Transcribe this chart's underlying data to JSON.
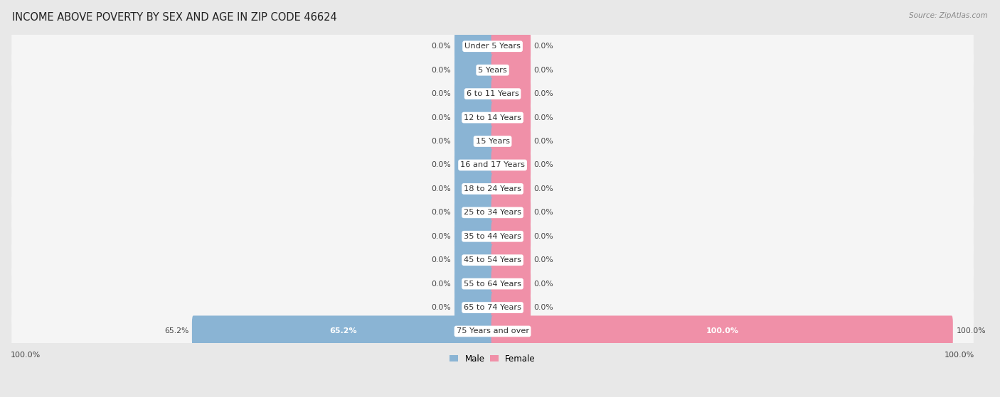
{
  "title": "INCOME ABOVE POVERTY BY SEX AND AGE IN ZIP CODE 46624",
  "source": "Source: ZipAtlas.com",
  "categories": [
    "Under 5 Years",
    "5 Years",
    "6 to 11 Years",
    "12 to 14 Years",
    "15 Years",
    "16 and 17 Years",
    "18 to 24 Years",
    "25 to 34 Years",
    "35 to 44 Years",
    "45 to 54 Years",
    "55 to 64 Years",
    "65 to 74 Years",
    "75 Years and over"
  ],
  "male_values": [
    0.0,
    0.0,
    0.0,
    0.0,
    0.0,
    0.0,
    0.0,
    0.0,
    0.0,
    0.0,
    0.0,
    0.0,
    65.2
  ],
  "female_values": [
    0.0,
    0.0,
    0.0,
    0.0,
    0.0,
    0.0,
    0.0,
    0.0,
    0.0,
    0.0,
    0.0,
    0.0,
    100.0
  ],
  "male_color": "#8ab4d4",
  "female_color": "#f090a8",
  "male_label": "Male",
  "female_label": "Female",
  "bg_color": "#e8e8e8",
  "bar_bg_color": "#f5f5f5",
  "row_sep_color": "#d0d0d0",
  "title_fontsize": 10.5,
  "label_fontsize": 8.5,
  "max_val": 100.0,
  "min_bar_width": 8.0,
  "axis_label_left": "100.0%",
  "axis_label_right": "100.0%"
}
